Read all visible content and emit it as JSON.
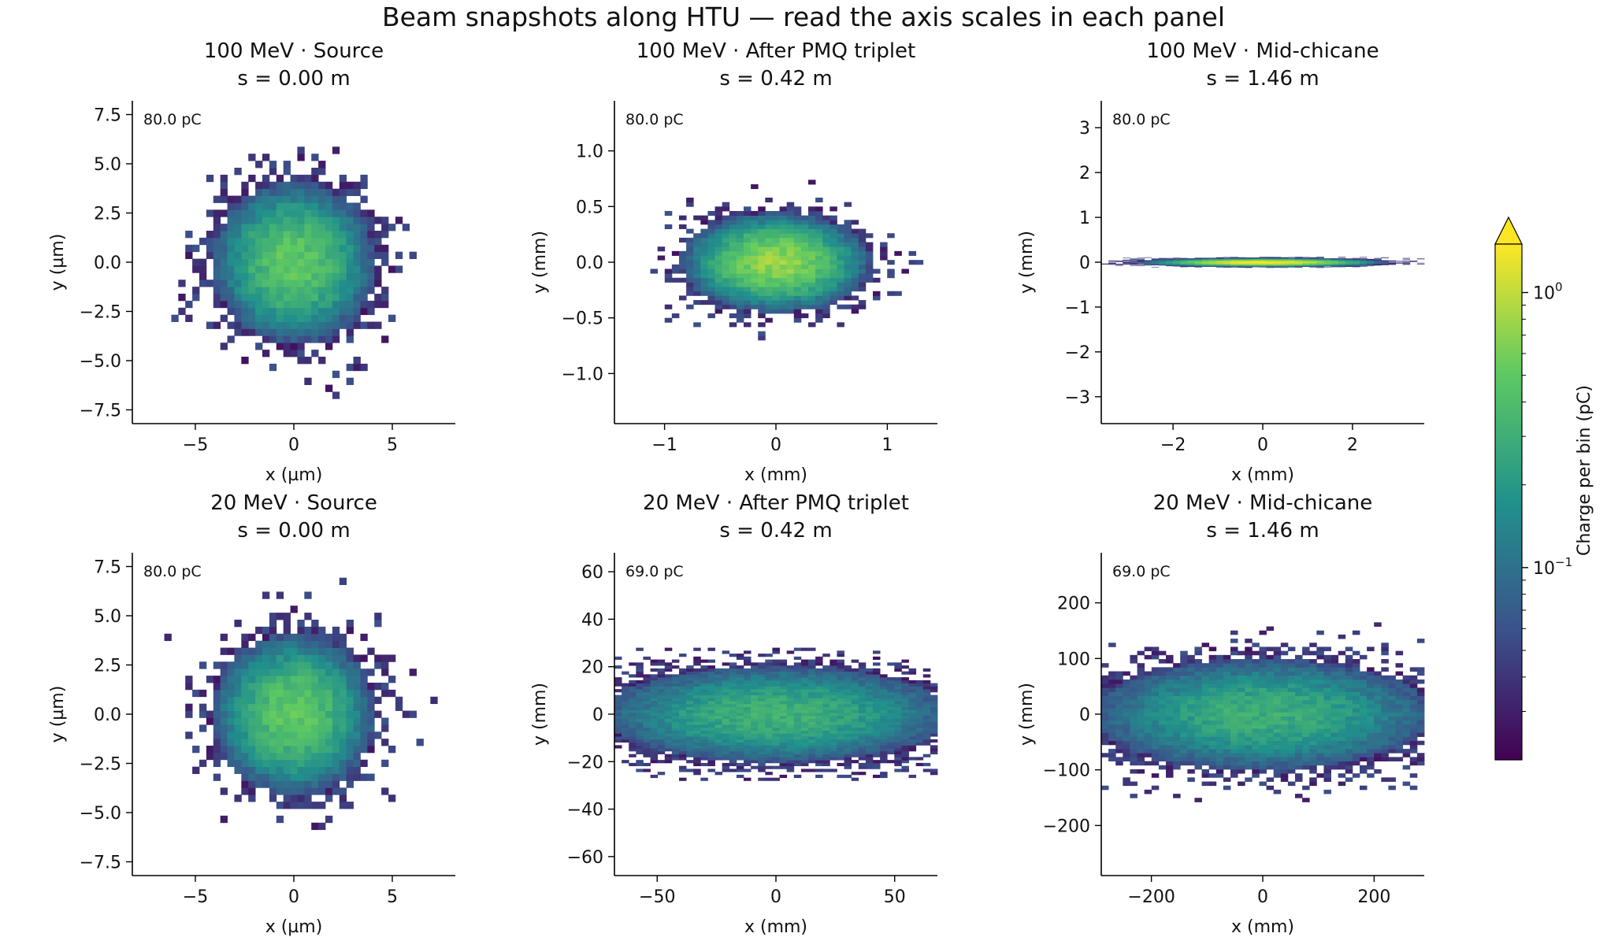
{
  "figure": {
    "title": "Beam snapshots along HTU — read the axis scales in each panel"
  },
  "colorbar": {
    "label": "Charge per bin (pC)",
    "scale": "log",
    "min": 0.02,
    "max": 1.5,
    "ticks": [
      {
        "value": 1,
        "label": "10",
        "exp": "0"
      },
      {
        "value": 0.1,
        "label": "10",
        "exp": "−1"
      }
    ],
    "extend": "max",
    "colormap": [
      "#440154",
      "#3b528b",
      "#21918c",
      "#5ec962",
      "#fde725"
    ]
  },
  "chart_data": [
    {
      "type": "heatmap",
      "title_line1": "100 MeV · Source",
      "title_line2": "s = 0.00 m",
      "xlabel": "x (µm)",
      "ylabel": "y (µm)",
      "xlim": [
        -8.2,
        8.2
      ],
      "ylim": [
        -8.2,
        8.2
      ],
      "xticks": [
        -5,
        0,
        5
      ],
      "xtick_labels": [
        "−5",
        "0",
        "5"
      ],
      "yticks": [
        -7.5,
        -5,
        -2.5,
        0,
        2.5,
        5,
        7.5
      ],
      "ytick_labels": [
        "−7.5",
        "−5.0",
        "−2.5",
        "0.0",
        "2.5",
        "5.0",
        "7.5"
      ],
      "annotation": "80.0 pC",
      "beam": {
        "sigma_x": 2.0,
        "sigma_y": 2.0,
        "extent_x": 8.0,
        "extent_y": 8.0,
        "peak": 0.5,
        "bins": 45
      }
    },
    {
      "type": "heatmap",
      "title_line1": "100 MeV · After PMQ triplet",
      "title_line2": "s = 0.42 m",
      "xlabel": "x (mm)",
      "ylabel": "y (mm)",
      "xlim": [
        -1.45,
        1.45
      ],
      "ylim": [
        -1.45,
        1.45
      ],
      "xticks": [
        -1,
        0,
        1
      ],
      "xtick_labels": [
        "−1",
        "0",
        "1"
      ],
      "yticks": [
        -1,
        -0.5,
        0,
        0.5,
        1
      ],
      "ytick_labels": [
        "−1.0",
        "−0.5",
        "0.0",
        "0.5",
        "1.0"
      ],
      "annotation": "80.0 pC",
      "beam": {
        "sigma_x": 0.38,
        "sigma_y": 0.2,
        "extent_x": 1.45,
        "extent_y": 0.9,
        "peak": 0.75,
        "bins": 45
      }
    },
    {
      "type": "heatmap",
      "title_line1": "100 MeV · Mid-chicane",
      "title_line2": "s = 1.46 m",
      "xlabel": "x (mm)",
      "ylabel": "y (mm)",
      "xlim": [
        -3.6,
        3.6
      ],
      "ylim": [
        -3.6,
        3.6
      ],
      "xticks": [
        -2,
        0,
        2
      ],
      "xtick_labels": [
        "−2",
        "0",
        "2"
      ],
      "yticks": [
        -3,
        -2,
        -1,
        0,
        1,
        2,
        3
      ],
      "ytick_labels": [
        "−3",
        "−2",
        "−1",
        "0",
        "1",
        "2",
        "3"
      ],
      "annotation": "80.0 pC",
      "beam": {
        "sigma_x": 1.1,
        "sigma_y": 0.04,
        "extent_x": 3.6,
        "extent_y": 0.12,
        "peak": 1.5,
        "bins": 45
      }
    },
    {
      "type": "heatmap",
      "title_line1": "20 MeV · Source",
      "title_line2": "s = 0.00 m",
      "xlabel": "x (µm)",
      "ylabel": "y (µm)",
      "xlim": [
        -8.2,
        8.2
      ],
      "ylim": [
        -8.2,
        8.2
      ],
      "xticks": [
        -5,
        0,
        5
      ],
      "xtick_labels": [
        "−5",
        "0",
        "5"
      ],
      "yticks": [
        -7.5,
        -5,
        -2.5,
        0,
        2.5,
        5,
        7.5
      ],
      "ytick_labels": [
        "−7.5",
        "−5.0",
        "−2.5",
        "0.0",
        "2.5",
        "5.0",
        "7.5"
      ],
      "annotation": "80.0 pC",
      "beam": {
        "sigma_x": 2.0,
        "sigma_y": 2.0,
        "extent_x": 8.0,
        "extent_y": 8.0,
        "peak": 0.5,
        "bins": 45
      }
    },
    {
      "type": "heatmap",
      "title_line1": "20 MeV · After PMQ triplet",
      "title_line2": "s = 0.42 m",
      "xlabel": "x (mm)",
      "ylabel": "y (mm)",
      "xlim": [
        -68,
        68
      ],
      "ylim": [
        -68,
        68
      ],
      "xticks": [
        -50,
        0,
        50
      ],
      "xtick_labels": [
        "−50",
        "0",
        "50"
      ],
      "yticks": [
        -60,
        -40,
        -20,
        0,
        20,
        40,
        60
      ],
      "ytick_labels": [
        "−60",
        "−40",
        "−20",
        "0",
        "20",
        "40",
        "60"
      ],
      "annotation": "69.0 pC",
      "beam": {
        "sigma_x": 40,
        "sigma_y": 11,
        "extent_x": 68,
        "extent_y": 28,
        "peak": 0.32,
        "bins": 45
      }
    },
    {
      "type": "heatmap",
      "title_line1": "20 MeV · Mid-chicane",
      "title_line2": "s = 1.46 m",
      "xlabel": "x (mm)",
      "ylabel": "y (mm)",
      "xlim": [
        -290,
        290
      ],
      "ylim": [
        -290,
        290
      ],
      "xticks": [
        -200,
        0,
        200
      ],
      "xtick_labels": [
        "−200",
        "0",
        "200"
      ],
      "yticks": [
        -200,
        -100,
        0,
        100,
        200
      ],
      "ytick_labels": [
        "−200",
        "−100",
        "0",
        "100",
        "200"
      ],
      "annotation": "69.0 pC",
      "beam": {
        "sigma_x": 170,
        "sigma_y": 55,
        "extent_x": 290,
        "extent_y": 165,
        "peak": 0.3,
        "bins": 45
      }
    }
  ]
}
